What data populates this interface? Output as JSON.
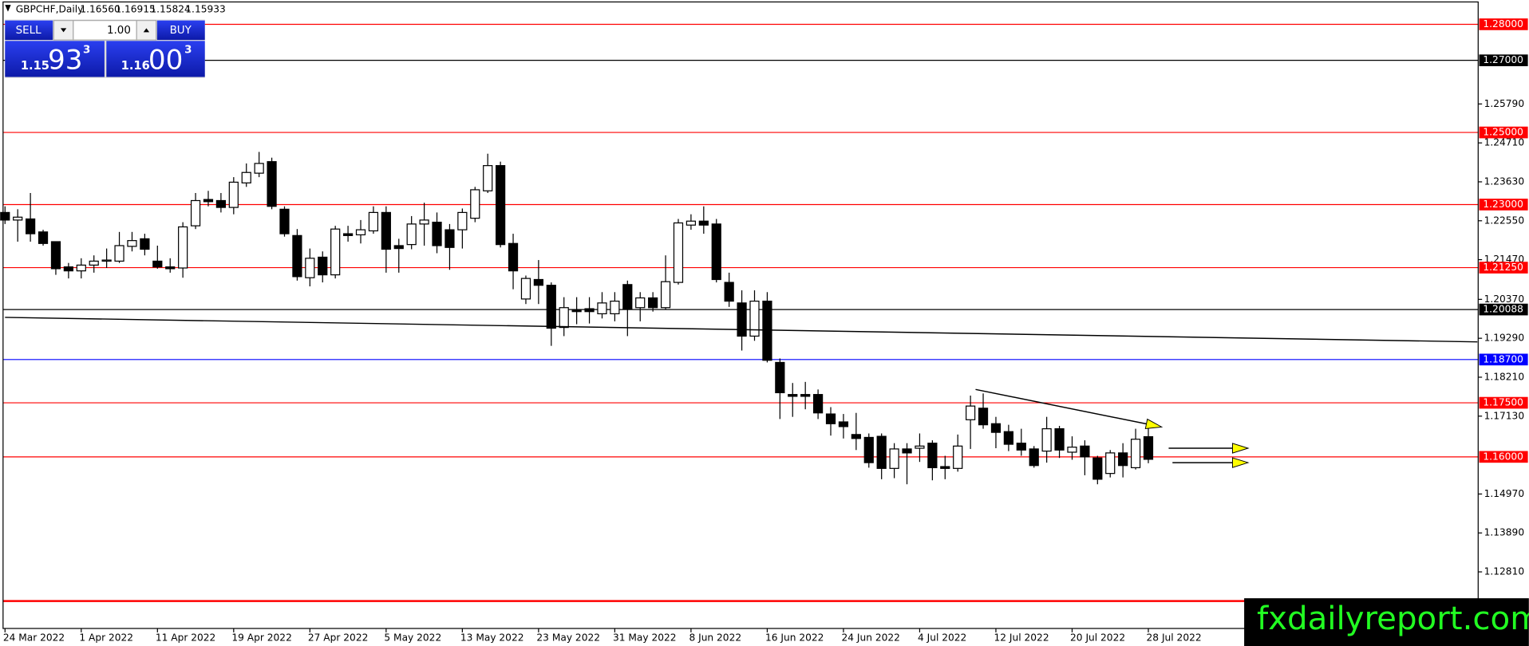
{
  "header": {
    "symbol": "GBPCHF,Daily",
    "ohlc_labels": [
      "1.16560",
      "1.16915",
      "1.15824",
      "1.15933"
    ]
  },
  "trade_panel": {
    "sell": "SELL",
    "buy": "BUY",
    "lot": "1.00",
    "sell_price": {
      "big_figure": "1.15",
      "pips": "93",
      "fraction": "3"
    },
    "buy_price": {
      "big_figure": "1.16",
      "pips": "00",
      "fraction": "3"
    }
  },
  "watermark": "fxdailyreport.com",
  "chart_data": {
    "type": "candlestick",
    "categories": [
      "24 Mar 2022",
      null,
      null,
      null,
      null,
      null,
      "1 Apr 2022",
      null,
      null,
      null,
      null,
      null,
      "11 Apr 2022",
      null,
      null,
      null,
      null,
      null,
      "19 Apr 2022",
      null,
      null,
      null,
      null,
      null,
      "27 Apr 2022",
      null,
      null,
      null,
      null,
      null,
      "5 May 2022",
      null,
      null,
      null,
      null,
      null,
      "13 May 2022",
      null,
      null,
      null,
      null,
      null,
      "23 May 2022",
      null,
      null,
      null,
      null,
      null,
      "31 May 2022",
      null,
      null,
      null,
      null,
      null,
      "8 Jun 2022",
      null,
      null,
      null,
      null,
      null,
      "16 Jun 2022",
      null,
      null,
      null,
      null,
      null,
      "24 Jun 2022",
      null,
      null,
      null,
      null,
      null,
      "4 Jul 2022",
      null,
      null,
      null,
      null,
      null,
      "12 Jul 2022",
      null,
      null,
      null,
      null,
      null,
      "20 Jul 2022",
      null,
      null,
      null,
      null,
      null,
      "28 Jul 2022"
    ],
    "open": [
      1.2278,
      1.2257,
      1.226,
      1.2224,
      1.2197,
      1.2127,
      1.2116,
      1.2132,
      1.2143,
      1.2143,
      1.2184,
      1.2205,
      1.2143,
      1.2127,
      1.2124,
      1.2241,
      1.2314,
      1.2311,
      1.2292,
      1.236,
      1.2387,
      1.2419,
      1.2287,
      1.2214,
      1.2097,
      1.2154,
      1.2105,
      1.2219,
      1.2216,
      1.2227,
      1.2278,
      1.2186,
      1.2189,
      1.2246,
      1.2251,
      1.223,
      1.223,
      1.2262,
      1.2338,
      1.2408,
      1.2192,
      1.2038,
      1.2092,
      1.2076,
      1.1959,
      1.2008,
      1.2011,
      1.1997,
      1.1997,
      1.2078,
      1.2014,
      1.2041,
      1.2014,
      1.2084,
      1.2243,
      1.2254,
      1.2246,
      1.2084,
      1.2027,
      1.1935,
      1.2032,
      1.1862,
      1.1773,
      1.1773,
      1.1773,
      1.1719,
      1.1697,
      1.1662,
      1.1654,
      1.1657,
      1.1568,
      1.1622,
      1.1624,
      1.1638,
      1.1573,
      1.1568,
      1.1703,
      1.1735,
      1.1692,
      1.167,
      1.1638,
      1.1622,
      1.1616,
      1.1678,
      1.1613,
      1.163,
      1.1597,
      1.1554,
      1.1611,
      1.157,
      1.1656
    ],
    "high": [
      1.2295,
      1.2287,
      1.2332,
      1.223,
      1.2197,
      1.2138,
      1.2151,
      1.2159,
      1.2178,
      1.2224,
      1.2224,
      1.2219,
      1.2186,
      1.2151,
      1.2251,
      1.2332,
      1.2338,
      1.2332,
      1.2376,
      1.2414,
      1.2446,
      1.243,
      1.2295,
      1.2232,
      1.2178,
      1.217,
      1.2241,
      1.2241,
      1.2257,
      1.2295,
      1.2295,
      1.2205,
      1.2268,
      1.2305,
      1.2278,
      1.2246,
      1.2289,
      1.2349,
      1.2441,
      1.2419,
      1.2219,
      1.2103,
      1.2146,
      1.2084,
      1.2043,
      1.2043,
      1.2043,
      1.2057,
      1.2057,
      1.2089,
      1.2057,
      1.2057,
      1.2159,
      1.226,
      1.2273,
      1.2295,
      1.226,
      1.2111,
      1.2062,
      1.2062,
      1.2057,
      1.1873,
      1.1805,
      1.1808,
      1.1787,
      1.1738,
      1.1719,
      1.1722,
      1.1665,
      1.1665,
      1.1638,
      1.1638,
      1.1665,
      1.1646,
      1.1603,
      1.1662,
      1.177,
      1.1776,
      1.1711,
      1.1689,
      1.1678,
      1.163,
      1.1711,
      1.1686,
      1.1657,
      1.1646,
      1.1603,
      1.1619,
      1.1638,
      1.1678,
      1.16915
    ],
    "low": [
      1.2246,
      1.2197,
      1.2197,
      1.2186,
      1.2105,
      1.2095,
      1.2095,
      1.2111,
      1.2124,
      1.2138,
      1.217,
      1.2159,
      1.2122,
      1.2111,
      1.2097,
      1.2232,
      1.2295,
      1.2278,
      1.2273,
      1.2349,
      1.2376,
      1.2287,
      1.2211,
      1.2089,
      1.2073,
      1.2084,
      1.2095,
      1.2197,
      1.2192,
      1.2219,
      1.2111,
      1.2111,
      1.2176,
      1.2186,
      1.2165,
      1.2119,
      1.2178,
      1.2251,
      1.2332,
      1.2181,
      1.2065,
      1.2024,
      1.2024,
      1.1908,
      1.1935,
      1.1968,
      1.197,
      1.1984,
      1.1976,
      1.1935,
      1.1976,
      1.2003,
      1.2008,
      1.2078,
      1.223,
      1.2219,
      1.2084,
      1.2016,
      1.1895,
      1.1922,
      1.1862,
      1.1705,
      1.1711,
      1.1732,
      1.1705,
      1.1659,
      1.1651,
      1.1619,
      1.157,
      1.1538,
      1.1541,
      1.1524,
      1.1586,
      1.1535,
      1.1538,
      1.1559,
      1.1622,
      1.1678,
      1.1624,
      1.1616,
      1.1603,
      1.157,
      1.1584,
      1.1597,
      1.1592,
      1.1549,
      1.1524,
      1.1543,
      1.1543,
      1.1565,
      1.15824
    ],
    "close": [
      1.2257,
      1.2265,
      1.2219,
      1.2192,
      1.2122,
      1.2116,
      1.2132,
      1.2143,
      1.2146,
      1.2186,
      1.22,
      1.2176,
      1.2127,
      1.2122,
      1.2238,
      1.2311,
      1.2308,
      1.2292,
      1.2362,
      1.2389,
      1.2414,
      1.2295,
      1.2219,
      1.21,
      1.2151,
      1.2105,
      1.2232,
      1.2214,
      1.223,
      1.2278,
      1.2176,
      1.2178,
      1.2246,
      1.2257,
      1.2186,
      1.2181,
      1.2278,
      1.2341,
      1.2408,
      1.2189,
      1.2116,
      1.2095,
      1.2076,
      1.1957,
      1.2014,
      1.2003,
      1.2003,
      1.2027,
      1.2032,
      1.2011,
      1.2041,
      1.2014,
      1.2086,
      1.2249,
      1.2254,
      1.2243,
      1.2092,
      1.2032,
      1.1935,
      1.2032,
      1.1868,
      1.1778,
      1.1768,
      1.1768,
      1.1722,
      1.1692,
      1.1684,
      1.1651,
      1.1584,
      1.1568,
      1.1622,
      1.1611,
      1.163,
      1.157,
      1.1568,
      1.163,
      1.1741,
      1.1689,
      1.1668,
      1.1635,
      1.1619,
      1.1576,
      1.1678,
      1.1619,
      1.1627,
      1.16,
      1.1538,
      1.1611,
      1.1576,
      1.1649,
      1.15933
    ],
    "up_color": "#ffffff",
    "down_color": "#000000",
    "ylim": [
      1.1124,
      1.2862
    ],
    "yticks": [
      {
        "value": 1.2579,
        "label": "1.25790"
      },
      {
        "value": 1.2471,
        "label": "1.24710"
      },
      {
        "value": 1.2363,
        "label": "1.23630"
      },
      {
        "value": 1.2255,
        "label": "1.22550"
      },
      {
        "value": 1.2147,
        "label": "1.21470"
      },
      {
        "value": 1.2037,
        "label": "1.20370"
      },
      {
        "value": 1.1929,
        "label": "1.19290"
      },
      {
        "value": 1.1821,
        "label": "1.18210"
      },
      {
        "value": 1.1713,
        "label": "1.17130"
      },
      {
        "value": 1.1497,
        "label": "1.14970"
      },
      {
        "value": 1.1389,
        "label": "1.13890"
      },
      {
        "value": 1.1281,
        "label": "1.12810"
      }
    ],
    "levels": [
      {
        "value": 1.28,
        "label": "1.28000",
        "color": "#ff0000"
      },
      {
        "value": 1.27,
        "label": "1.27000",
        "color": "#000000"
      },
      {
        "value": 1.25,
        "label": "1.25000",
        "color": "#ff0000"
      },
      {
        "value": 1.23,
        "label": "1.23000",
        "color": "#ff0000"
      },
      {
        "value": 1.2125,
        "label": "1.21250",
        "color": "#ff0000"
      },
      {
        "value": 1.20088,
        "label": "1.20088",
        "color": "#000000"
      },
      {
        "value": 1.187,
        "label": "1.18700",
        "color": "#0000ff"
      },
      {
        "value": 1.175,
        "label": "1.17500",
        "color": "#ff0000"
      },
      {
        "value": 1.16,
        "label": "1.16000",
        "color": "#ff0000"
      },
      {
        "value": 1.12,
        "color": "#ff0000"
      }
    ],
    "trendlines": [
      {
        "x": [
          0,
          115.9
        ],
        "y": [
          1.1987,
          1.1919
        ],
        "color": "#000000"
      },
      {
        "x": [
          76.4,
          90.9
        ],
        "y": [
          1.1787,
          1.1684
        ],
        "color": "#000000",
        "arrow": "#ffff00"
      },
      {
        "x": [
          91.6,
          97.7
        ],
        "y": [
          1.1624,
          1.1624
        ],
        "color": "#000000",
        "arrow": "#ffff00"
      },
      {
        "x": [
          91.9,
          97.7
        ],
        "y": [
          1.1584,
          1.1584
        ],
        "color": "#000000",
        "arrow": "#ffff00"
      }
    ]
  }
}
